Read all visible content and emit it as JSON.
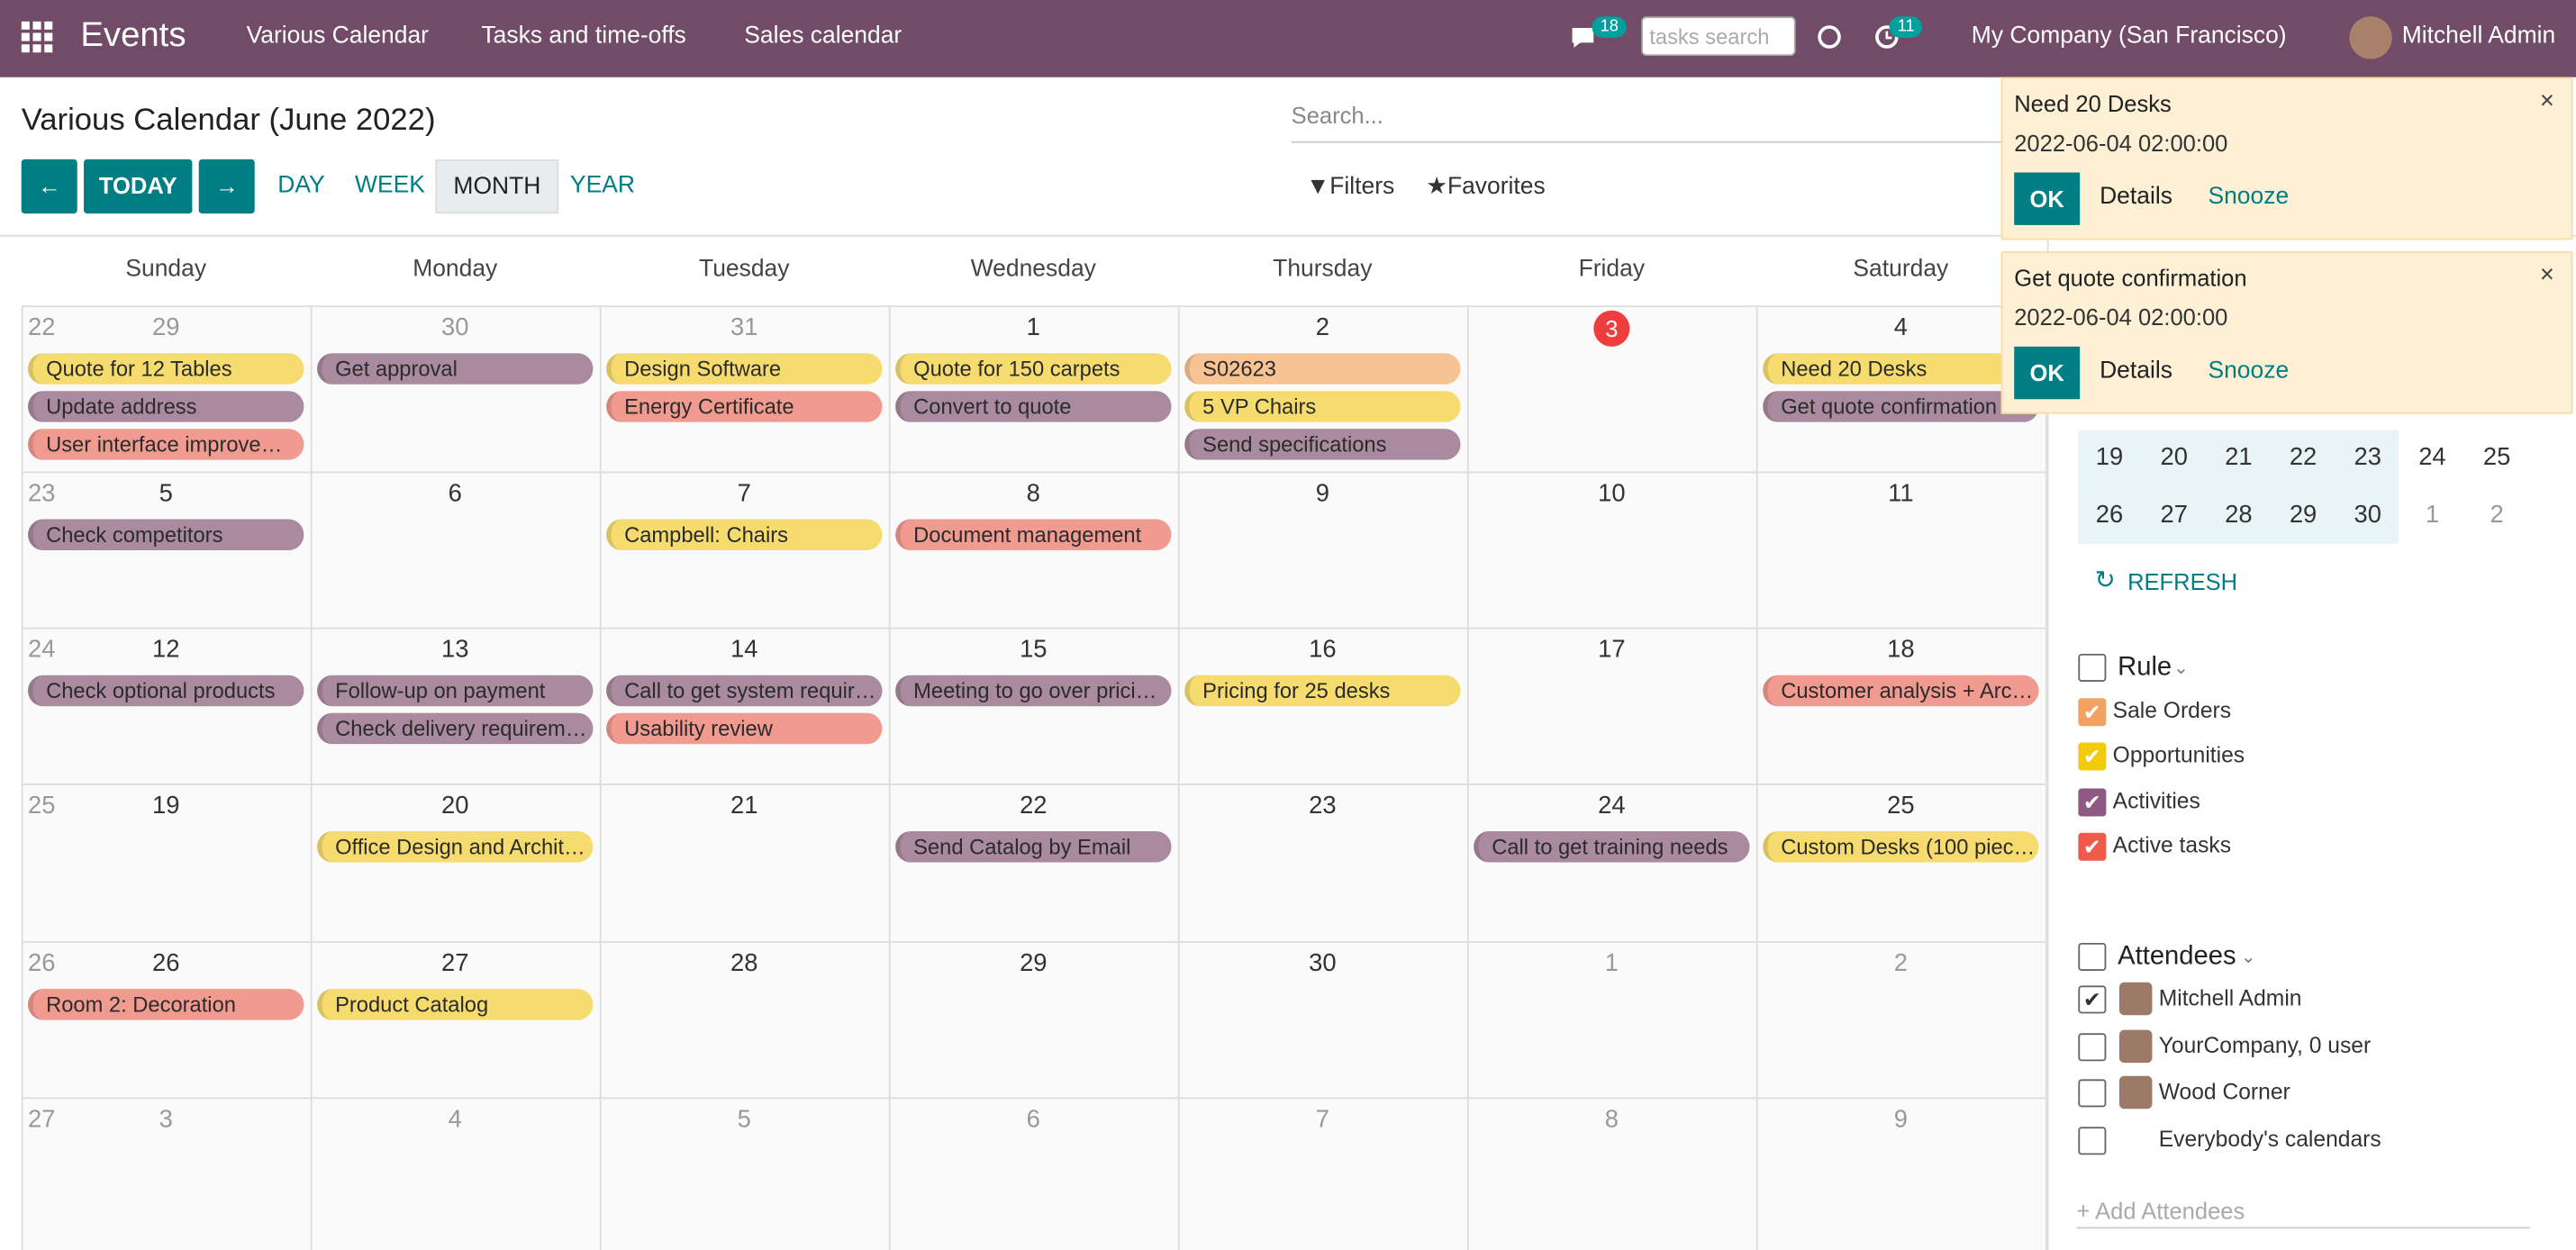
{
  "header": {
    "app": "Events",
    "menu": [
      "Various Calendar",
      "Tasks and time-offs",
      "Sales calendar"
    ],
    "chat_count": "18",
    "search_placeholder": "tasks search",
    "activity_count": "11",
    "company": "My Company (San Francisco)",
    "user": "Mitchell Admin"
  },
  "control_panel": {
    "title": "Various Calendar (June 2022)",
    "search_placeholder": "Search...",
    "today": "TODAY",
    "scales": [
      "DAY",
      "WEEK",
      "MONTH",
      "YEAR"
    ],
    "active_scale": 2,
    "filters": "Filters",
    "favorites": "Favorites"
  },
  "calendar": {
    "weekdays": [
      "Sunday",
      "Monday",
      "Tuesday",
      "Wednesday",
      "Thursday",
      "Friday",
      "Saturday"
    ],
    "weeks": [
      {
        "number": "22",
        "days": [
          {
            "date": "29",
            "muted": true,
            "events": [
              {
                "title": "Quote for 12 Tables",
                "color": "#f6dc6e"
              },
              {
                "title": "Update address",
                "color": "#aa8a9f"
              },
              {
                "title": "User interface improve…",
                "color": "#f19a8f"
              }
            ]
          },
          {
            "date": "30",
            "muted": true,
            "events": [
              {
                "title": "Get approval",
                "color": "#aa8a9f"
              }
            ]
          },
          {
            "date": "31",
            "muted": true,
            "events": [
              {
                "title": "Design Software",
                "color": "#f6dc6e"
              },
              {
                "title": "Energy Certificate",
                "color": "#f19a8f"
              }
            ]
          },
          {
            "date": "1",
            "events": [
              {
                "title": "Quote for 150 carpets",
                "color": "#f6dc6e"
              },
              {
                "title": "Convert to quote",
                "color": "#aa8a9f"
              }
            ]
          },
          {
            "date": "2",
            "events": [
              {
                "title": "S02623",
                "color": "#f8c393"
              },
              {
                "title": "5 VP Chairs",
                "color": "#f6dc6e"
              },
              {
                "title": "Send specifications",
                "color": "#aa8a9f"
              }
            ]
          },
          {
            "date": "3",
            "today": true,
            "events": []
          },
          {
            "date": "4",
            "events": [
              {
                "title": "Need 20 Desks",
                "color": "#f6dc6e"
              },
              {
                "title": "Get quote confirmation",
                "color": "#aa8a9f"
              }
            ]
          }
        ]
      },
      {
        "number": "23",
        "days": [
          {
            "date": "5",
            "events": [
              {
                "title": "Check competitors",
                "color": "#aa8a9f"
              }
            ]
          },
          {
            "date": "6",
            "events": []
          },
          {
            "date": "7",
            "events": [
              {
                "title": "Campbell: Chairs",
                "color": "#f6dc6e"
              }
            ]
          },
          {
            "date": "8",
            "events": [
              {
                "title": "Document management",
                "color": "#f19a8f"
              }
            ]
          },
          {
            "date": "9",
            "events": []
          },
          {
            "date": "10",
            "events": []
          },
          {
            "date": "11",
            "events": []
          }
        ]
      },
      {
        "number": "24",
        "days": [
          {
            "date": "12",
            "events": [
              {
                "title": "Check optional products",
                "color": "#aa8a9f"
              }
            ]
          },
          {
            "date": "13",
            "events": [
              {
                "title": "Follow-up on payment",
                "color": "#aa8a9f"
              },
              {
                "title": "Check delivery requirem…",
                "color": "#aa8a9f"
              }
            ]
          },
          {
            "date": "14",
            "events": [
              {
                "title": "Call to get system requir…",
                "color": "#aa8a9f"
              },
              {
                "title": "Usability review",
                "color": "#f19a8f"
              }
            ]
          },
          {
            "date": "15",
            "events": [
              {
                "title": "Meeting to go over prici…",
                "color": "#aa8a9f"
              }
            ]
          },
          {
            "date": "16",
            "events": [
              {
                "title": "Pricing for 25 desks",
                "color": "#f6dc6e"
              }
            ]
          },
          {
            "date": "17",
            "events": []
          },
          {
            "date": "18",
            "events": [
              {
                "title": "Customer analysis + Arc…",
                "color": "#f19a8f"
              }
            ]
          }
        ]
      },
      {
        "number": "25",
        "days": [
          {
            "date": "19",
            "events": []
          },
          {
            "date": "20",
            "events": [
              {
                "title": "Office Design and Archit…",
                "color": "#f6dc6e"
              }
            ]
          },
          {
            "date": "21",
            "events": []
          },
          {
            "date": "22",
            "events": [
              {
                "title": "Send Catalog by Email",
                "color": "#aa8a9f"
              }
            ]
          },
          {
            "date": "23",
            "events": []
          },
          {
            "date": "24",
            "events": [
              {
                "title": "Call to get training needs",
                "color": "#aa8a9f"
              }
            ]
          },
          {
            "date": "25",
            "events": [
              {
                "title": "Custom Desks (100 piec…",
                "color": "#f6dc6e"
              }
            ]
          }
        ]
      },
      {
        "number": "26",
        "days": [
          {
            "date": "26",
            "events": [
              {
                "title": "Room 2: Decoration",
                "color": "#f19a8f"
              }
            ]
          },
          {
            "date": "27",
            "events": [
              {
                "title": "Product Catalog",
                "color": "#f6dc6e"
              }
            ]
          },
          {
            "date": "28",
            "events": []
          },
          {
            "date": "29",
            "events": []
          },
          {
            "date": "30",
            "events": []
          },
          {
            "date": "1",
            "muted": true,
            "events": []
          },
          {
            "date": "2",
            "muted": true,
            "events": []
          }
        ]
      },
      {
        "number": "27",
        "days": [
          {
            "date": "3",
            "muted": true,
            "events": []
          },
          {
            "date": "4",
            "muted": true,
            "events": []
          },
          {
            "date": "5",
            "muted": true,
            "events": []
          },
          {
            "date": "6",
            "muted": true,
            "events": []
          },
          {
            "date": "7",
            "muted": true,
            "events": []
          },
          {
            "date": "8",
            "muted": true,
            "events": []
          },
          {
            "date": "9",
            "muted": true,
            "events": []
          }
        ]
      }
    ]
  },
  "sidebar": {
    "mini_calendar": [
      [
        {
          "d": "19"
        },
        {
          "d": "20"
        },
        {
          "d": "21"
        },
        {
          "d": "22"
        },
        {
          "d": "23"
        },
        {
          "d": "24"
        },
        {
          "d": "25"
        }
      ],
      [
        {
          "d": "26"
        },
        {
          "d": "27"
        },
        {
          "d": "28"
        },
        {
          "d": "29"
        },
        {
          "d": "30"
        },
        {
          "d": "1",
          "muted": true
        },
        {
          "d": "2",
          "muted": true
        }
      ]
    ],
    "refresh": "REFRESH",
    "groups": [
      {
        "title": "Rule",
        "items": [
          {
            "label": "Sale Orders",
            "color": "#f4a261",
            "checked": true
          },
          {
            "label": "Opportunities",
            "color": "#f2cc0c",
            "checked": true
          },
          {
            "label": "Activities",
            "color": "#8e5a83",
            "checked": true
          },
          {
            "label": "Active tasks",
            "color": "#ef5a4a",
            "checked": true
          }
        ]
      },
      {
        "title": "Attendees",
        "items": [
          {
            "label": "Mitchell Admin",
            "checked": true
          },
          {
            "label": "YourCompany, 0 user",
            "checked": false
          },
          {
            "label": "Wood Corner",
            "checked": false
          },
          {
            "label": "Everybody's calendars",
            "checked": false
          }
        ]
      }
    ],
    "add_attendees": "+ Add Attendees"
  },
  "notifications": [
    {
      "title": "Need 20 Desks",
      "time": "2022-06-04 02:00:00",
      "ok": "OK",
      "details": "Details",
      "snooze": "Snooze"
    },
    {
      "title": "Get quote confirmation",
      "time": "2022-06-04 02:00:00",
      "ok": "OK",
      "details": "Details",
      "snooze": "Snooze"
    }
  ]
}
